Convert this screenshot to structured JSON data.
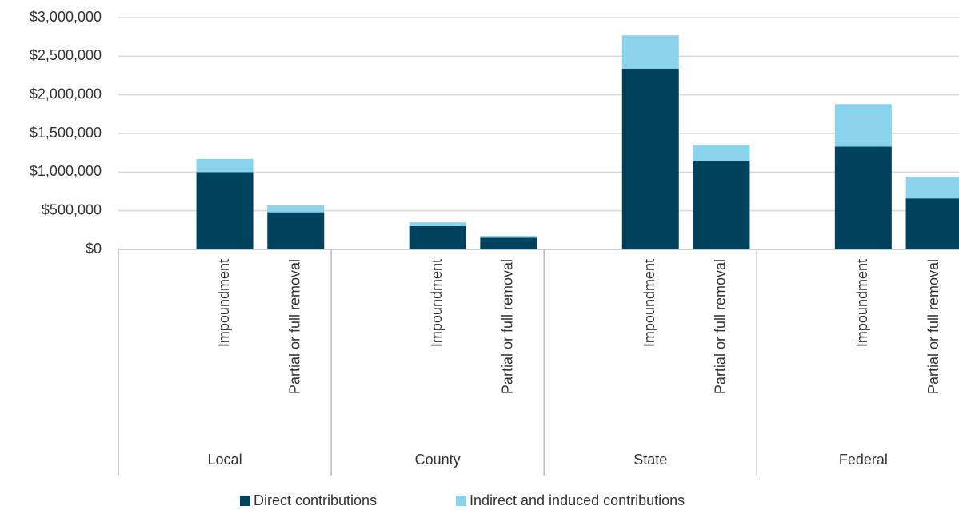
{
  "chart_data": {
    "type": "stacked-bar",
    "groups": [
      "Local",
      "County",
      "State",
      "Federal"
    ],
    "categories": [
      null,
      "Impoundment",
      "Partial or full removal",
      null,
      "Impoundment",
      "Partial or full removal",
      null,
      "Impoundment",
      "Partial or full removal",
      null,
      "Impoundment",
      "Partial or full removal"
    ],
    "series": [
      {
        "name": "Direct contributions",
        "color": "#00425e",
        "values": [
          null,
          1000000,
          480000,
          null,
          300000,
          150000,
          null,
          2340000,
          1140000,
          null,
          1330000,
          660000
        ]
      },
      {
        "name": "Indirect and induced contributions",
        "color": "#89d4ec",
        "values": [
          null,
          170000,
          95000,
          null,
          50000,
          25000,
          null,
          430000,
          215000,
          null,
          550000,
          280000
        ]
      }
    ],
    "ylim": [
      0,
      3000000
    ],
    "yticks": [
      {
        "value": 0,
        "label": "$0"
      },
      {
        "value": 500000,
        "label": "$500,000"
      },
      {
        "value": 1000000,
        "label": "$1,000,000"
      },
      {
        "value": 1500000,
        "label": "$1,500,000"
      },
      {
        "value": 2000000,
        "label": "$2,000,000"
      },
      {
        "value": 2500000,
        "label": "$2,500,000"
      },
      {
        "value": 3000000,
        "label": "$3,000,000"
      }
    ],
    "grid": true,
    "legend": "bottom"
  }
}
